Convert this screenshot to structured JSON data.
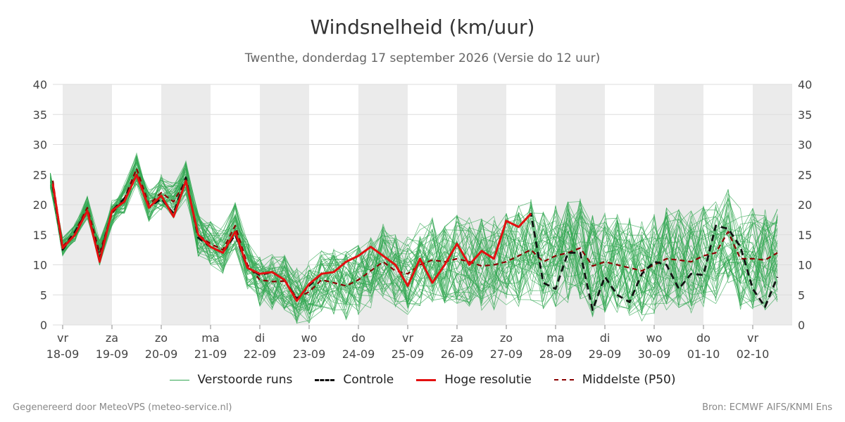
{
  "title": "Windsnelheid (km/uur)",
  "subtitle": "Twenthe, donderdag 17 september 2026 (Versie do 12 uur)",
  "footer_left": "Gegenereerd door MeteoVPS (meteo-service.nl)",
  "footer_right": "Bron: ECMWF AIFS/KNMI Ens",
  "colors": {
    "ensemble": "#33a853",
    "control": "#111111",
    "high_res": "#e31010",
    "median": "#8b0000",
    "weekend_band": "#ebebeb",
    "grid": "#dddddd"
  },
  "chart_data": {
    "type": "line",
    "ylim": [
      0,
      40
    ],
    "yticks": [
      0,
      5,
      10,
      15,
      20,
      25,
      30,
      35,
      40
    ],
    "xlim": [
      -0.2,
      14.8
    ],
    "x_unit": "days from 18-09 00:00",
    "xticks": [
      {
        "x": 0,
        "day": "vr",
        "date": "18-09"
      },
      {
        "x": 1,
        "day": "za",
        "date": "19-09"
      },
      {
        "x": 2,
        "day": "zo",
        "date": "20-09"
      },
      {
        "x": 3,
        "day": "ma",
        "date": "21-09"
      },
      {
        "x": 4,
        "day": "di",
        "date": "22-09"
      },
      {
        "x": 5,
        "day": "wo",
        "date": "23-09"
      },
      {
        "x": 6,
        "day": "do",
        "date": "24-09"
      },
      {
        "x": 7,
        "day": "vr",
        "date": "25-09"
      },
      {
        "x": 8,
        "day": "za",
        "date": "26-09"
      },
      {
        "x": 9,
        "day": "zo",
        "date": "27-09"
      },
      {
        "x": 10,
        "day": "ma",
        "date": "28-09"
      },
      {
        "x": 11,
        "day": "di",
        "date": "29-09"
      },
      {
        "x": 12,
        "day": "wo",
        "date": "30-09"
      },
      {
        "x": 13,
        "day": "do",
        "date": "01-10"
      },
      {
        "x": 14,
        "day": "vr",
        "date": "02-10"
      }
    ],
    "shaded_days": [
      0,
      2,
      4,
      6,
      8,
      10,
      12,
      14
    ],
    "legend": [
      "Verstoorde runs",
      "Controle",
      "Hoge resolutie",
      "Middelste (P50)"
    ],
    "series": [
      {
        "name": "Hoge resolutie",
        "x": [
          -0.25,
          0,
          0.25,
          0.5,
          0.75,
          1,
          1.25,
          1.5,
          1.75,
          2,
          2.25,
          2.5,
          2.75,
          3,
          3.25,
          3.5,
          3.75,
          4,
          4.25,
          4.5,
          4.75,
          5,
          5.25,
          5.5,
          5.75,
          6,
          6.25,
          6.5,
          6.75,
          7,
          7.25,
          7.5,
          7.75,
          8,
          8.25,
          8.5,
          8.75,
          9,
          9.25,
          9.5
        ],
        "y": [
          23.5,
          12.8,
          15.0,
          19.0,
          10.5,
          19.0,
          20.5,
          25.0,
          19.5,
          21.5,
          18.0,
          24.0,
          15.0,
          13.0,
          12.0,
          15.5,
          9.5,
          8.5,
          8.8,
          7.5,
          4.0,
          6.8,
          8.5,
          8.8,
          10.5,
          11.5,
          13.0,
          11.5,
          10.0,
          6.5,
          11.0,
          7.0,
          10.0,
          13.5,
          10.0,
          12.3,
          11.0,
          17.3,
          16.3,
          18.5
        ]
      },
      {
        "name": "Controle",
        "x": [
          -0.25,
          0,
          0.25,
          0.5,
          0.75,
          1,
          1.25,
          1.5,
          1.75,
          2,
          2.25,
          2.5,
          2.75,
          3,
          3.25,
          3.5,
          3.75,
          4,
          4.25,
          4.5,
          4.75,
          5,
          5.25,
          5.5,
          5.75,
          6,
          6.25,
          6.5,
          6.75,
          7,
          7.25,
          7.5,
          7.75,
          8,
          8.25,
          8.5,
          8.75,
          9,
          9.25,
          9.5,
          9.75,
          10,
          10.25,
          10.5,
          10.75,
          11,
          11.25,
          11.5,
          11.75,
          12,
          12.25,
          12.5,
          12.75,
          13,
          13.25,
          13.5,
          13.75,
          14,
          14.25,
          14.5
        ],
        "y": [
          23.0,
          12.5,
          15.5,
          19.0,
          11.0,
          19.0,
          21.0,
          25.0,
          19.5,
          21.0,
          18.5,
          24.5,
          14.5,
          13.0,
          12.0,
          15.0,
          9.5,
          8.3,
          8.8,
          7.5,
          4.3,
          6.5,
          8.5,
          8.8,
          10.5,
          11.5,
          13.0,
          11.5,
          10.0,
          6.5,
          11.0,
          7.0,
          10.0,
          13.5,
          10.0,
          12.3,
          11.0,
          17.3,
          16.3,
          18.5,
          7.0,
          6.0,
          12.0,
          12.0,
          2.5,
          8.0,
          5.0,
          3.8,
          8.5,
          10.5,
          10.0,
          6.0,
          8.5,
          8.3,
          16.5,
          16.0,
          13.0,
          6.0,
          3.0,
          8.0
        ]
      },
      {
        "name": "Middelste (P50)",
        "x": [
          -0.25,
          0,
          0.25,
          0.5,
          0.75,
          1,
          1.25,
          1.5,
          1.75,
          2,
          2.25,
          2.5,
          2.75,
          3,
          3.25,
          3.5,
          3.75,
          4,
          4.25,
          4.5,
          4.75,
          5,
          5.25,
          5.5,
          5.75,
          6,
          6.25,
          6.5,
          6.75,
          7,
          7.25,
          7.5,
          7.75,
          8,
          8.25,
          8.5,
          8.75,
          9,
          9.25,
          9.5,
          9.75,
          10,
          10.25,
          10.5,
          10.75,
          11,
          11.25,
          11.5,
          11.75,
          12,
          12.25,
          12.5,
          12.75,
          13,
          13.25,
          13.5,
          13.75,
          14,
          14.25,
          14.5
        ],
        "y": [
          24.0,
          13.0,
          15.5,
          19.5,
          12.0,
          18.5,
          21.0,
          26.0,
          20.0,
          22.0,
          20.5,
          24.0,
          15.0,
          13.5,
          12.5,
          16.5,
          10.0,
          7.5,
          7.2,
          7.3,
          4.5,
          5.5,
          7.5,
          7.0,
          6.5,
          7.5,
          9.0,
          10.5,
          9.0,
          8.5,
          10.0,
          10.8,
          10.5,
          11.0,
          10.5,
          9.8,
          10.0,
          10.5,
          11.5,
          12.5,
          10.5,
          11.5,
          12.0,
          12.8,
          9.8,
          10.5,
          10.0,
          9.5,
          9.0,
          10.0,
          11.0,
          10.8,
          10.5,
          11.5,
          12.0,
          15.5,
          11.0,
          11.0,
          10.8,
          12.0
        ]
      }
    ]
  }
}
